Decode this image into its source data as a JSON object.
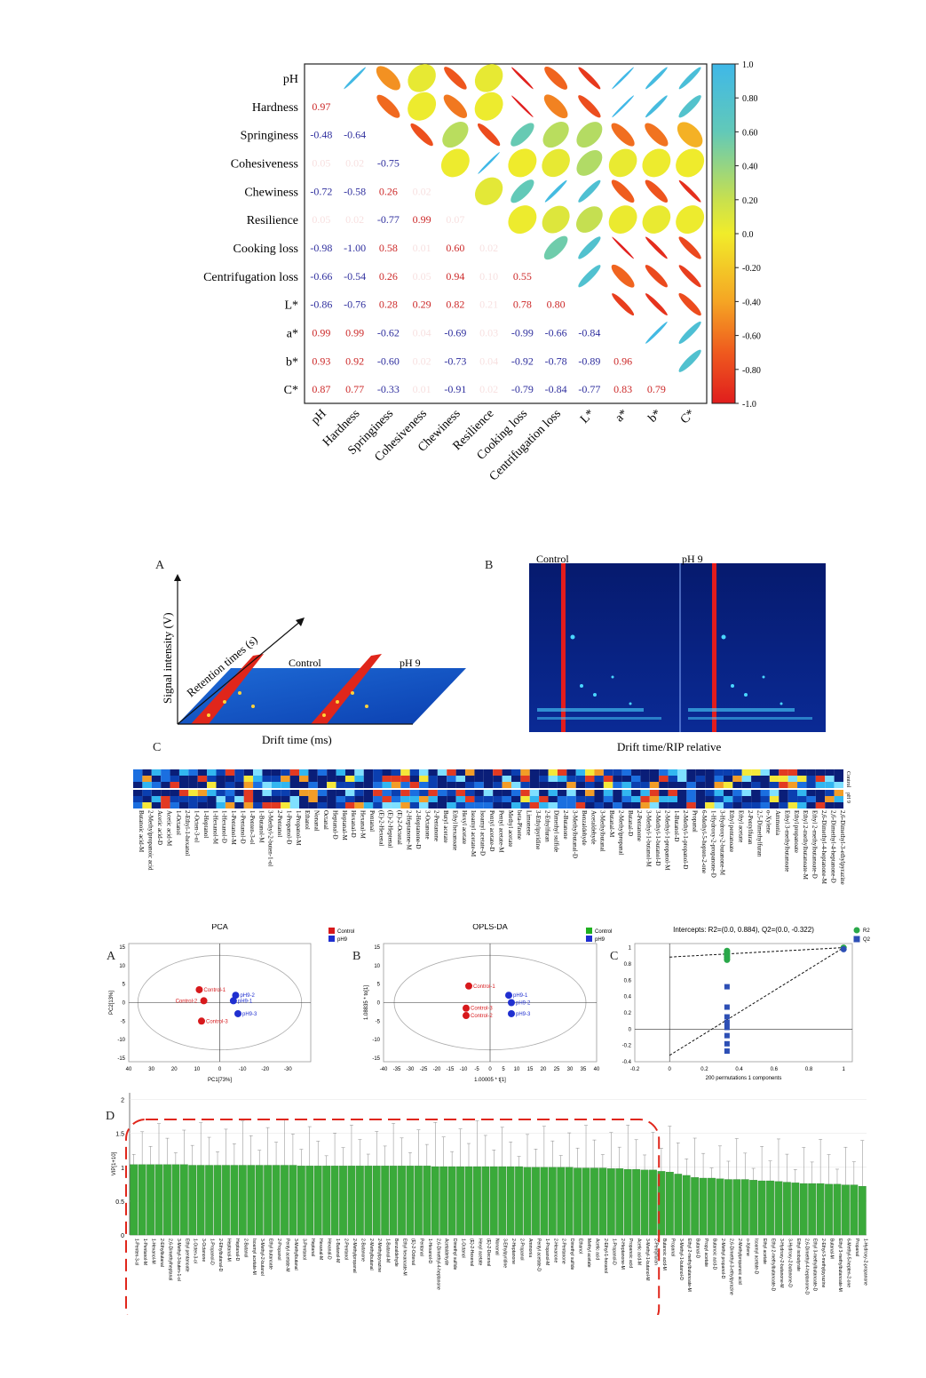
{
  "corr": {
    "variables": [
      "pH",
      "Hardness",
      "Springiness",
      "Cohesiveness",
      "Chewiness",
      "Resilience",
      "Cooking loss",
      "Centrifugation loss",
      "L*",
      "a*",
      "b*",
      "C*"
    ],
    "lower": [
      [
        null,
        null,
        null,
        null,
        null,
        null,
        null,
        null,
        null,
        null,
        null,
        null
      ],
      [
        0.97,
        null,
        null,
        null,
        null,
        null,
        null,
        null,
        null,
        null,
        null,
        null
      ],
      [
        -0.48,
        -0.64,
        null,
        null,
        null,
        null,
        null,
        null,
        null,
        null,
        null,
        null
      ],
      [
        0.05,
        0.02,
        -0.75,
        null,
        null,
        null,
        null,
        null,
        null,
        null,
        null,
        null
      ],
      [
        -0.72,
        -0.58,
        0.26,
        0.02,
        null,
        null,
        null,
        null,
        null,
        null,
        null,
        null
      ],
      [
        0.05,
        0.02,
        -0.77,
        0.99,
        0.07,
        null,
        null,
        null,
        null,
        null,
        null,
        null
      ],
      [
        -0.98,
        -1.0,
        0.58,
        0.01,
        0.6,
        0.02,
        null,
        null,
        null,
        null,
        null,
        null
      ],
      [
        -0.66,
        -0.54,
        0.26,
        0.05,
        0.94,
        0.1,
        0.55,
        null,
        null,
        null,
        null,
        null
      ],
      [
        -0.86,
        -0.76,
        0.28,
        0.29,
        0.82,
        0.21,
        0.78,
        0.8,
        null,
        null,
        null,
        null
      ],
      [
        0.99,
        0.99,
        -0.62,
        0.04,
        -0.69,
        0.03,
        -0.99,
        -0.66,
        -0.84,
        null,
        null,
        null
      ],
      [
        0.93,
        0.92,
        -0.6,
        0.02,
        -0.73,
        0.04,
        -0.92,
        -0.78,
        -0.89,
        0.96,
        null,
        null
      ],
      [
        0.87,
        0.77,
        -0.33,
        0.01,
        -0.91,
        0.02,
        -0.79,
        -0.84,
        -0.77,
        0.83,
        0.79,
        null
      ]
    ],
    "colorbar_ticks": [
      "1.0",
      "0.80",
      "0.60",
      "0.40",
      "0.20",
      "0.0",
      "-0.20",
      "-0.40",
      "-0.60",
      "-0.80",
      "-1.0"
    ]
  },
  "fig2": {
    "label_a": "A",
    "label_b": "B",
    "label_c": "C",
    "a_ylabel": "Signal intensity (V)",
    "a_diag": "Retention times (s)",
    "a_xlabel": "Drift time (ms)",
    "a_control": "Control",
    "a_ph9": "pH 9",
    "b_control": "Control",
    "b_ph9": "pH 9",
    "b_xlabel": "Drift time/RIP relative",
    "c_compounds": [
      "Butanoic acid-M",
      "2-Methylpropanoic acid",
      "Acetic acid-D",
      "Acetic acid-M",
      "1-Octanol",
      "2-Ethyl-1-hexanol",
      "1-Octen-3-ol",
      "1-Heptanol",
      "1-Hexanol-M",
      "1-Hexanol-D",
      "1-Pentanol-M",
      "1-Pentanol-D",
      "1-Penten-3-ol",
      "1-Butanol-M",
      "3-Methyl-2-buten-1-ol",
      "2-Pentanol",
      "1-Propanol-D",
      "1-Propanol-M",
      "Ethanol",
      "Nonanal",
      "Octanal",
      "Heptanal-D",
      "Heptanal-M",
      "Hexanal-D",
      "Hexanal-M",
      "Pentanal",
      "(E)-2-Hexenal",
      "(E)-2-Heptenal",
      "(E)-2-Octenal",
      "2-Heptanone-M",
      "2-Heptanone-D",
      "3-Octanone",
      "2-Pentanone",
      "Butyl acetate",
      "Ethyl hexanoate",
      "Hexyl acetate",
      "Isoamyl acetate-M",
      "Isoamyl acetate-D",
      "Pentyl acetate-D",
      "Pentyl acetate-M",
      "Methyl acetate",
      "beta-Pinene",
      "Limonene",
      "3-Ethylpyridine",
      "2-Ethylfuran",
      "Dimethyl sulfide",
      "2-Butanone",
      "3-Methylbutanal-D",
      "Benzaldehyde",
      "Acetaldehyde",
      "3-Methylbutanal",
      "Butanal-M",
      "2-Methylpropanal",
      "Butanal-D",
      "2-Pentanone",
      "3-Methyl-1-butanol-M",
      "3-Methyl-1-butanol-D",
      "2-Methyl-1-propanol-M",
      "1-Butanol-D",
      "2-Methyl-1-propanol-D",
      "Propanal",
      "6-Methyl-5-hepten-2-one",
      "1-Hydroxy-2-propanone-D",
      "3-Hydroxy-2-butanone-M",
      "Ethyl pentanoate",
      "Ethyl acetate",
      "2-Pentylfuran",
      "2,5-Dimethylfuran",
      "o-Xylene",
      "Ammonia",
      "Ethyl 3-methylbutanoate",
      "Ethyl propanoate",
      "Ethyl 2-methylbutanoate-M",
      "Ethyl 2-methylbutanoate-D",
      "2,6-Dimethyl-4-heptanone-M",
      "2,6-Dimethyl-4-heptanone-D",
      "2,6-Dimethyl-3-ethylpyrazine"
    ],
    "c_rows": [
      "Control",
      "pH 9"
    ]
  },
  "fig3": {
    "label_a": "A",
    "label_b": "B",
    "label_c": "C",
    "label_d": "D",
    "pca": {
      "title": "PCA",
      "ylabel": "PC2[13%]",
      "xlabel": "PC1[73%]",
      "legend": [
        "Control",
        "pH9"
      ],
      "xticks": [
        "40",
        "30",
        "20",
        "10",
        "0",
        "-10",
        "-20",
        "-30"
      ],
      "yticks": [
        "15",
        "10",
        "5",
        "0",
        "-5",
        "-10",
        "-15"
      ],
      "xrange": [
        40,
        -40
      ],
      "yrange": [
        -16,
        16
      ],
      "points": [
        {
          "label": "Control-1",
          "x": 9,
          "y": 3.5,
          "group": 0
        },
        {
          "label": "Control-2",
          "x": 7,
          "y": 0.5,
          "group": 0
        },
        {
          "label": "Control-3",
          "x": 8,
          "y": -5,
          "group": 0
        },
        {
          "label": "pH9-1",
          "x": -6,
          "y": 0.5,
          "group": 1
        },
        {
          "label": "pH9-2",
          "x": -7,
          "y": 2,
          "group": 1
        },
        {
          "label": "pH9-3",
          "x": -8,
          "y": -3,
          "group": 1
        }
      ]
    },
    "oplsda": {
      "title": "OPLS-DA",
      "ylabel": "1.08835 * to[1]",
      "xlabel": "1.00005 * t[1]",
      "legend": [
        "Control",
        "pH9"
      ],
      "xticks": [
        "-40",
        "-35",
        "-30",
        "-25",
        "-20",
        "-15",
        "-10",
        "-5",
        "0",
        "5",
        "10",
        "15",
        "20",
        "25",
        "30",
        "35",
        "40"
      ],
      "yticks": [
        "15",
        "10",
        "5",
        "0",
        "-5",
        "-10",
        "-15"
      ],
      "xrange": [
        -40,
        40
      ],
      "yrange": [
        -16,
        16
      ],
      "points": [
        {
          "label": "Control-1",
          "x": -8,
          "y": 4.5,
          "group": 0
        },
        {
          "label": "Control-3",
          "x": -9,
          "y": -1.5,
          "group": 0
        },
        {
          "label": "Control-2",
          "x": -9,
          "y": -3.5,
          "group": 0
        },
        {
          "label": "pH9-1",
          "x": 7,
          "y": 2,
          "group": 1
        },
        {
          "label": "pH9-2",
          "x": 8,
          "y": 0,
          "group": 1
        },
        {
          "label": "pH9-3",
          "x": 8,
          "y": -3,
          "group": 1
        }
      ]
    },
    "perm": {
      "title": "Intercepts: R2=(0.0, 0.884), Q2=(0.0, -0.322)",
      "xlabel": "200 permutations 1 components",
      "legend": [
        "R2",
        "Q2"
      ],
      "xticks": [
        "-0.2",
        "0",
        "0.2",
        "0.4",
        "0.6",
        "0.8",
        "1"
      ],
      "yticks": [
        "1",
        "0.8",
        "0.6",
        "0.4",
        "0.2",
        "0",
        "-0.2",
        "-0.4"
      ],
      "xrange": [
        -0.2,
        1.05
      ],
      "yrange": [
        -0.4,
        1.05
      ],
      "r2": [
        0.96,
        0.95,
        0.93,
        0.92,
        0.9,
        0.88,
        0.86,
        0.85,
        1.0
      ],
      "q2": [
        0.52,
        0.27,
        0.15,
        0.08,
        0.02,
        -0.08,
        -0.18,
        -0.27,
        0.98
      ],
      "r2_line": [
        [
          0,
          0.884
        ],
        [
          1,
          1.0
        ]
      ],
      "q2_line": [
        [
          0,
          -0.322
        ],
        [
          1,
          1.0
        ]
      ]
    },
    "vip": {
      "ylabel": "VIP[1+10]",
      "yticks": [
        "2",
        "1.5",
        "1",
        "0.5",
        "0"
      ],
      "ymax": 2.1,
      "compounds": [
        "1-Penten-3-ol",
        "1-Pentanol-M",
        "1-Hexanol-M",
        "2-Ethylbutanal",
        "2,6-Dimethylheptanal",
        "3-Methyl-3-buten-1-ol",
        "Ethyl pentanoate",
        "1-Octen-3-ol",
        "3-Octanone",
        "1-Propanol-D",
        "2-Ethylbutanal-D",
        "Heptanal-M",
        "Heptanal-D",
        "2-Butanol",
        "Isoamyl acetate-M",
        "3-Methyl-2-butanol",
        "Ethyl butanoate",
        "2-Propanol",
        "Pentyl acetate-M",
        "3-Methylbutanal",
        "3-Pentanol",
        "Heptanal",
        "Hexanal-M",
        "Hexanal-D",
        "1-Butanol-M",
        "2-Pentanol",
        "2-Methylpropanal",
        "2-Butanone",
        "2-Methylbutanal",
        "2-Methylpyrazine",
        "1-Butanol-M",
        "Benzaldehyde",
        "Ethyl hexanoate-M",
        "(E)-2-Octenal",
        "Pentanal",
        "1-Hexanol-D",
        "2,6-Dimethyl-4-heptanone",
        "Acetaldehyde",
        "Dimethyl sulfide",
        "1-Octanol",
        "(E)-2-Hexenal",
        "Hexyl acetate",
        "(E)-2-Decenal",
        "Nonanal",
        "3-Ethylpyridine",
        "2-Heptanone",
        "2-Propanol",
        "Ammonia",
        "Pentyl acetate-D",
        "1-Propanol-M",
        "2-Hexanone",
        "2-Pentanone",
        "Dimethyl sulfide",
        "Ethanol",
        "Methyl acetate",
        "Acetic acid",
        "2-Ethyl-1-hexanol",
        "1-Propanol-D",
        "2-Heptanone-M",
        "Propanoic acid",
        "Acetic acid-M",
        "3-Methyl-1-butanol-M",
        "2-Pentylfuran",
        "Butanoic acid-M",
        "Propanal",
        "3-Methyl-1-butanol-D",
        "Ethyl 2-methylbutanoate-M",
        "Butanal-D",
        "Propyl acetate",
        "Butanoic acid-D",
        "2-Methyl propanol-D",
        "2,6-Dimethyl-3-ethylpyrazine",
        "2-Methylpropanoic acid",
        "o-Xylene",
        "Isoamyl acetate-D",
        "Ethyl acetate",
        "Ethyl 2-methylbutanoate-D",
        "3-Hydroxy-2-butanone-M",
        "3-Hydroxy-2-butanone-D",
        "Ethyl isobutyrate",
        "2,6-Dimethyl-4-heptanone-D",
        "Ethyl 3-methylbutanoate-D",
        "2-Ethyl-3-methylpyrazine",
        "Butanal-M",
        "Ethyl 3-methylbutanoate-M",
        "6-Methyl-5-hepten-2-one",
        "Propanal",
        "1-Hydroxy-2-propanone"
      ],
      "values": [
        1.04,
        1.04,
        1.04,
        1.04,
        1.04,
        1.04,
        1.04,
        1.03,
        1.03,
        1.03,
        1.03,
        1.03,
        1.03,
        1.03,
        1.03,
        1.03,
        1.03,
        1.03,
        1.03,
        1.03,
        1.02,
        1.02,
        1.02,
        1.02,
        1.02,
        1.02,
        1.02,
        1.02,
        1.02,
        1.02,
        1.02,
        1.02,
        1.02,
        1.02,
        1.02,
        1.02,
        1.01,
        1.01,
        1.01,
        1.01,
        1.01,
        1.01,
        1.01,
        1.01,
        1.01,
        1.01,
        1.01,
        1.0,
        1.0,
        1.0,
        1.0,
        1.0,
        1.0,
        0.99,
        0.99,
        0.99,
        0.99,
        0.98,
        0.98,
        0.97,
        0.97,
        0.96,
        0.96,
        0.94,
        0.93,
        0.9,
        0.88,
        0.85,
        0.84,
        0.84,
        0.83,
        0.82,
        0.82,
        0.82,
        0.81,
        0.8,
        0.8,
        0.79,
        0.78,
        0.77,
        0.76,
        0.76,
        0.76,
        0.75,
        0.75,
        0.74,
        0.74,
        0.72
      ]
    }
  }
}
